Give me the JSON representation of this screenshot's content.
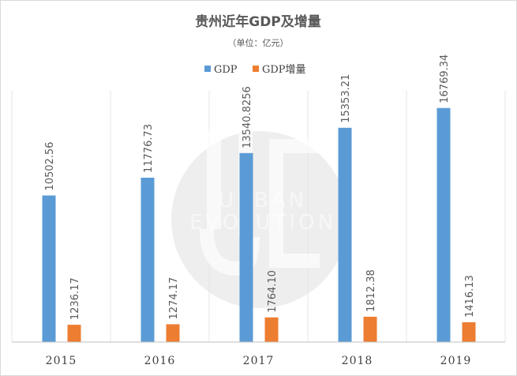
{
  "chart_data": {
    "type": "bar",
    "title": "贵州近年GDP及增量",
    "subtitle": "（单位：亿元）",
    "categories": [
      "2015",
      "2016",
      "2017",
      "2018",
      "2019"
    ],
    "series": [
      {
        "name": "GDP",
        "color": "#5B9BD5",
        "values": [
          10502.56,
          11776.73,
          13540.8256,
          15353.21,
          16769.34
        ],
        "labels": [
          "10502.56",
          "11776.73",
          "13540.8256",
          "15353.21",
          "16769.34"
        ]
      },
      {
        "name": "GDP增量",
        "color": "#ED7D31",
        "values": [
          1236.17,
          1274.17,
          1764.1,
          1812.38,
          1416.13
        ],
        "labels": [
          "1236.17",
          "1274.17",
          "1764.10",
          "1812.38",
          "1416.13"
        ]
      }
    ],
    "ylim": [
      0,
      18000
    ],
    "legend": "top-center",
    "grid": "vertical",
    "xlabel": "",
    "ylabel": ""
  },
  "watermark": {
    "line1": "URBAN",
    "line2": "EVOLUTION"
  }
}
